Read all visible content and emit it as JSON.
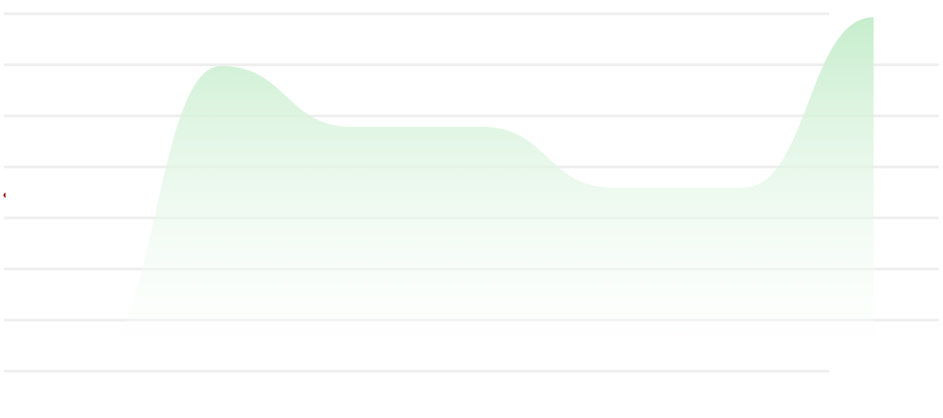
{
  "chart_data": {
    "type": "area",
    "title": "",
    "xlabel": "",
    "ylabel": "",
    "grid": true,
    "legend": "none",
    "x": [
      0,
      1,
      2,
      3,
      4,
      5,
      6
    ],
    "xlim": [
      0,
      6.5
    ],
    "ylim": [
      0,
      7
    ],
    "series": [
      {
        "values": [
          0,
          6,
          4.75,
          4.75,
          3.5,
          3.5,
          7
        ],
        "color": "#c6edcc"
      }
    ]
  },
  "colors": {
    "fill_top": "#c6edcc",
    "fill_bottom": "#ffffff",
    "grid_line": "#efefef",
    "edge_marker": "#9e1818"
  }
}
